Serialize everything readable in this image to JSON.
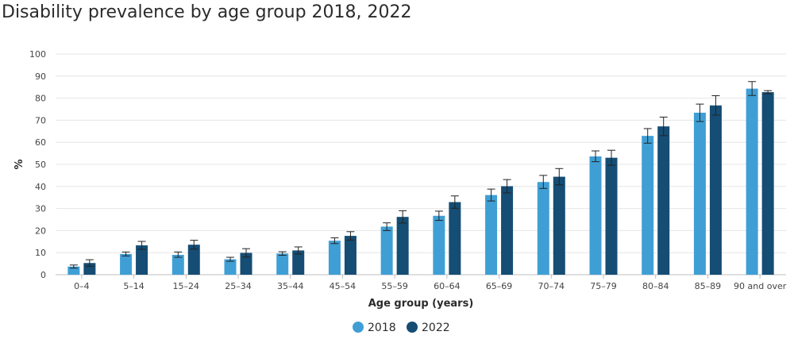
{
  "chart_data": {
    "type": "bar",
    "title": "Disability prevalence by age group 2018, 2022",
    "xlabel": "Age group (years)",
    "ylabel": "%",
    "ylim": [
      0,
      100
    ],
    "yticks": [
      0,
      10,
      20,
      30,
      40,
      50,
      60,
      70,
      80,
      90,
      100
    ],
    "grid": true,
    "legend_position": "bottom-center",
    "categories": [
      "0–4",
      "5–14",
      "15–24",
      "25–34",
      "35–44",
      "45–54",
      "55–59",
      "60–64",
      "65–69",
      "70–74",
      "75–79",
      "80–84",
      "85–89",
      "90 and over"
    ],
    "series": [
      {
        "name": "2018",
        "color": "#3f9fd5",
        "values": [
          3.7,
          9.4,
          9.0,
          7.0,
          9.6,
          15.4,
          21.8,
          26.7,
          36.1,
          42.0,
          53.6,
          62.9,
          73.4,
          84.3
        ],
        "error": [
          [
            3.0,
            4.4
          ],
          [
            8.5,
            10.3
          ],
          [
            7.9,
            10.3
          ],
          [
            6.1,
            7.9
          ],
          [
            8.8,
            10.4
          ],
          [
            14.1,
            16.7
          ],
          [
            20.0,
            23.5
          ],
          [
            24.6,
            28.8
          ],
          [
            33.4,
            38.8
          ],
          [
            39.1,
            45.0
          ],
          [
            51.2,
            56.1
          ],
          [
            59.6,
            66.2
          ],
          [
            69.4,
            77.3
          ],
          [
            81.2,
            87.5
          ]
        ]
      },
      {
        "name": "2022",
        "color": "#154d74",
        "values": [
          5.3,
          13.3,
          13.6,
          9.9,
          11.0,
          17.6,
          26.2,
          32.9,
          40.1,
          44.4,
          53.0,
          67.2,
          76.7,
          82.7
        ],
        "error": [
          [
            3.8,
            6.8
          ],
          [
            11.5,
            15.1
          ],
          [
            11.6,
            15.6
          ],
          [
            8.0,
            11.8
          ],
          [
            9.4,
            12.6
          ],
          [
            15.7,
            19.5
          ],
          [
            23.4,
            29.0
          ],
          [
            30.1,
            35.7
          ],
          [
            37.1,
            43.1
          ],
          [
            40.7,
            48.1
          ],
          [
            49.6,
            56.4
          ],
          [
            63.0,
            71.4
          ],
          [
            72.3,
            81.1
          ],
          [
            82.0,
            83.4
          ]
        ]
      }
    ]
  }
}
